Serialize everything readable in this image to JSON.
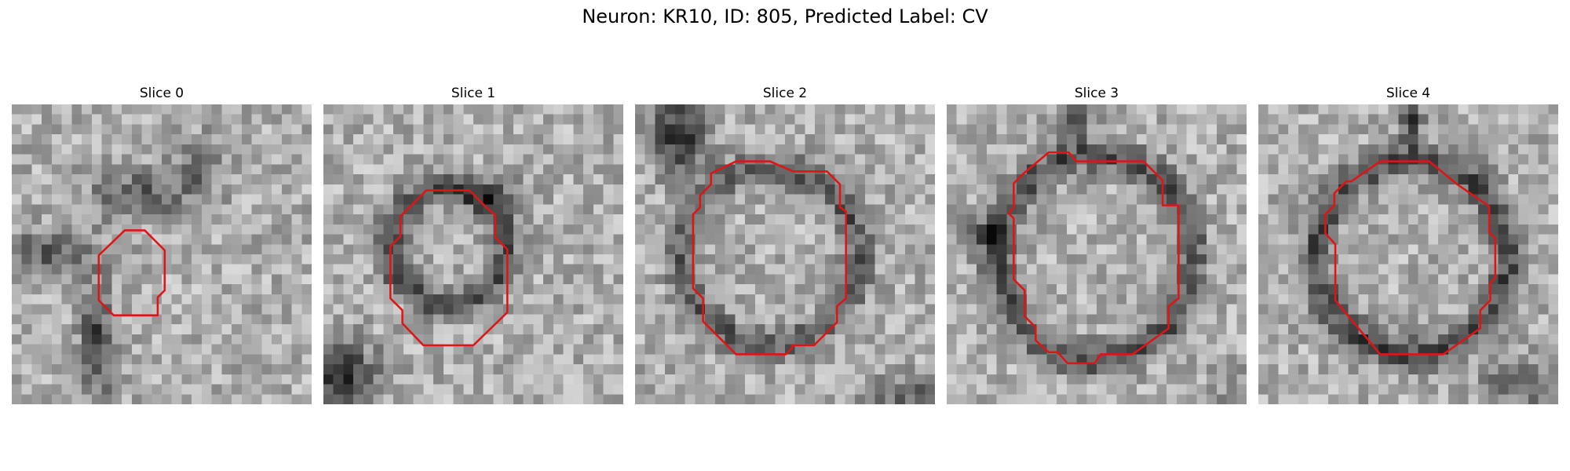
{
  "figure": {
    "title": "Neuron: KR10, ID: 805, Predicted Label: CV"
  },
  "colors": {
    "contour": "#e01414"
  },
  "panels": [
    {
      "title": "Slice 0",
      "seed": 11,
      "dark_blobs": "left-bottom"
    },
    {
      "title": "Slice 1",
      "seed": 23,
      "dark_blobs": "ring-small"
    },
    {
      "title": "Slice 2",
      "seed": 37,
      "dark_blobs": "ring-medium"
    },
    {
      "title": "Slice 3",
      "seed": 51,
      "dark_blobs": "ring-large"
    },
    {
      "title": "Slice 4",
      "seed": 73,
      "dark_blobs": "ring-large-2"
    }
  ]
}
